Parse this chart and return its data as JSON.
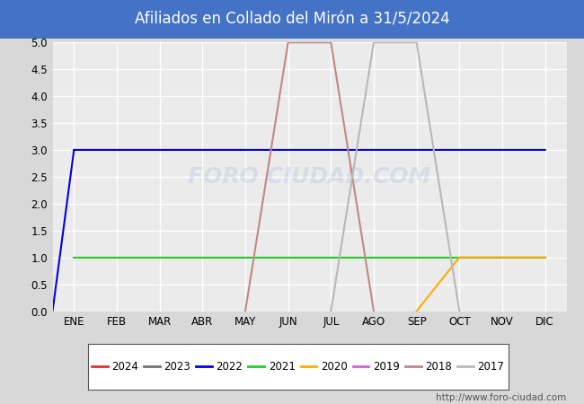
{
  "title": "Afiliados en Collado del Mirón a 31/5/2024",
  "title_color": "white",
  "title_bg_color": "#4472c4",
  "months": [
    "ENE",
    "FEB",
    "MAR",
    "ABR",
    "MAY",
    "JUN",
    "JUL",
    "AGO",
    "SEP",
    "OCT",
    "NOV",
    "DIC"
  ],
  "month_positions": [
    1,
    2,
    3,
    4,
    5,
    6,
    7,
    8,
    9,
    10,
    11,
    12
  ],
  "ylim": [
    0.0,
    5.0
  ],
  "yticks": [
    0.0,
    0.5,
    1.0,
    1.5,
    2.0,
    2.5,
    3.0,
    3.5,
    4.0,
    4.5,
    5.0
  ],
  "background_color": "#d8d8d8",
  "plot_bg_color": "#ebebeb",
  "grid_color": "white",
  "watermark": "FORO CIUDAD.COM",
  "url": "http://www.foro-ciudad.com",
  "series": [
    {
      "label": "2024",
      "color": "#e03030",
      "data": [
        [
          1,
          3
        ],
        [
          2,
          3
        ],
        [
          3,
          3
        ],
        [
          4,
          3
        ],
        [
          5,
          3
        ]
      ]
    },
    {
      "label": "2023",
      "color": "#707070",
      "data": []
    },
    {
      "label": "2022",
      "color": "#0000dd",
      "data": [
        [
          0.5,
          0
        ],
        [
          1.0,
          3
        ],
        [
          2,
          3
        ],
        [
          3,
          3
        ],
        [
          4,
          3
        ],
        [
          5,
          3
        ],
        [
          6,
          3
        ],
        [
          7,
          3
        ],
        [
          8,
          3
        ],
        [
          9,
          3
        ],
        [
          10,
          3
        ],
        [
          11,
          3
        ],
        [
          12,
          3
        ]
      ]
    },
    {
      "label": "2021",
      "color": "#22cc22",
      "data": [
        [
          1,
          1
        ],
        [
          2,
          1
        ],
        [
          3,
          1
        ],
        [
          4,
          1
        ],
        [
          5,
          1
        ],
        [
          6,
          1
        ],
        [
          7,
          1
        ],
        [
          8,
          1
        ],
        [
          9,
          1
        ],
        [
          10,
          1
        ],
        [
          11,
          1
        ],
        [
          12,
          1
        ]
      ]
    },
    {
      "label": "2020",
      "color": "#ffaa00",
      "data": [
        [
          9,
          0
        ],
        [
          10,
          1
        ],
        [
          11,
          1
        ],
        [
          12,
          1
        ]
      ]
    },
    {
      "label": "2019",
      "color": "#cc66cc",
      "data": []
    },
    {
      "label": "2018",
      "color": "#c08888",
      "data": [
        [
          5,
          0
        ],
        [
          6,
          5
        ],
        [
          7,
          5
        ],
        [
          8,
          0
        ]
      ]
    },
    {
      "label": "2017",
      "color": "#b8b8b8",
      "data": [
        [
          7,
          0
        ],
        [
          8,
          5
        ],
        [
          9,
          5
        ],
        [
          10,
          0
        ]
      ]
    }
  ],
  "legend_colors_order": [
    "2024",
    "2023",
    "2022",
    "2021",
    "2020",
    "2019",
    "2018",
    "2017"
  ]
}
